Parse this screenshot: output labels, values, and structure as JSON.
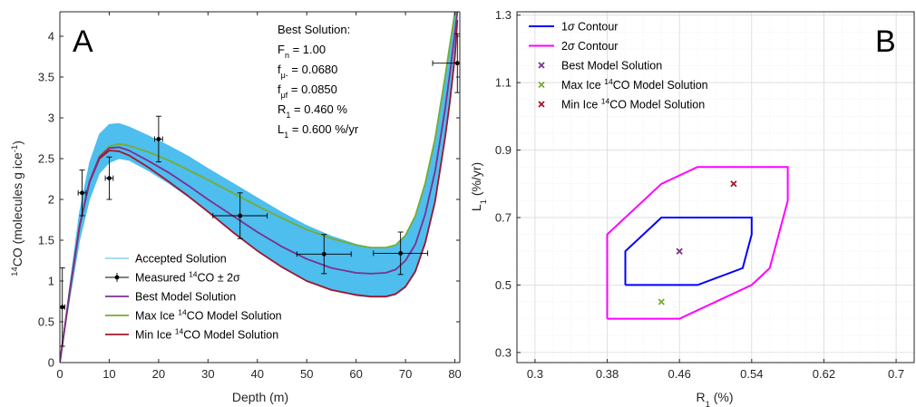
{
  "chart_data": [
    {
      "panel": "A",
      "type": "line",
      "xlabel": "Depth (m)",
      "ylabel_parts": {
        "sup": "14",
        "main": "CO (molecules g ice",
        "sup2": "-1",
        "end": ")"
      },
      "xlim": [
        0,
        81
      ],
      "ylim": [
        0,
        4.3
      ],
      "xticks": [
        0,
        10,
        20,
        30,
        40,
        50,
        60,
        70,
        80
      ],
      "yticks": [
        0,
        0.5,
        1,
        1.5,
        2,
        2.5,
        3,
        3.5,
        4
      ],
      "ytick_labels": [
        "0",
        "0.5",
        "1",
        "1.5",
        "2",
        "2.5",
        "3",
        "3.5",
        "4"
      ],
      "grid": false,
      "legend_position": "bottom-left",
      "legend": [
        {
          "key": "accepted",
          "label": "Accepted Solution",
          "color": "#4dbeee"
        },
        {
          "key": "measured",
          "label_parts": [
            "Measured ",
            "14",
            "CO ± 2σ"
          ],
          "color": "#000000"
        },
        {
          "key": "best",
          "label": "Best Model Solution",
          "color": "#7e2f8e"
        },
        {
          "key": "max",
          "label_parts": [
            "Max Ice ",
            "14",
            "CO Model Solution"
          ],
          "color": "#77ac30"
        },
        {
          "key": "min",
          "label_parts": [
            "Min Ice ",
            "14",
            "CO Model Solution"
          ],
          "color": "#a2142f"
        }
      ],
      "annotation": {
        "title": "Best Solution:",
        "lines": [
          {
            "sym": "F",
            "sub": "n",
            "text": " = 1.00"
          },
          {
            "sym": "f",
            "sub": "μ-",
            "text": " = 0.0680"
          },
          {
            "sym": "f",
            "sub": "μf",
            "text": " = 0.0850"
          },
          {
            "sym": "R",
            "sub": "1",
            "text": " = 0.460 %"
          },
          {
            "sym": "L",
            "sub": "1",
            "text": " = 0.600 %/yr"
          }
        ]
      },
      "measurements": [
        {
          "x": 0.5,
          "y": 0.68,
          "xerr": 0.5,
          "yerr": 0.48
        },
        {
          "x": 4.5,
          "y": 2.08,
          "xerr": 0.8,
          "yerr": 0.28
        },
        {
          "x": 10,
          "y": 2.26,
          "xerr": 0.8,
          "yerr": 0.26
        },
        {
          "x": 20,
          "y": 2.74,
          "xerr": 0.8,
          "yerr": 0.28
        },
        {
          "x": 36.5,
          "y": 1.8,
          "xerr": 5.5,
          "yerr": 0.28
        },
        {
          "x": 53.5,
          "y": 1.33,
          "xerr": 5.5,
          "yerr": 0.24
        },
        {
          "x": 69,
          "y": 1.34,
          "xerr": 5.5,
          "yerr": 0.26
        },
        {
          "x": 80.5,
          "y": 3.67,
          "xerr": 5,
          "yerr": 0.36
        }
      ],
      "accepted_band": {
        "x": [
          0,
          2,
          4,
          6,
          8,
          10,
          12,
          14,
          18,
          22,
          26,
          30,
          35,
          40,
          45,
          50,
          55,
          60,
          63,
          66,
          68,
          70,
          72,
          74,
          76,
          78,
          79,
          80,
          80.5
        ],
        "lower": [
          0,
          0.78,
          1.5,
          2.0,
          2.32,
          2.45,
          2.5,
          2.48,
          2.35,
          2.2,
          2.03,
          1.85,
          1.6,
          1.37,
          1.17,
          1.0,
          0.89,
          0.82,
          0.8,
          0.8,
          0.83,
          0.92,
          1.1,
          1.45,
          1.95,
          2.75,
          3.2,
          3.8,
          4.25
        ],
        "upper": [
          0,
          0.95,
          1.85,
          2.45,
          2.8,
          2.92,
          2.93,
          2.89,
          2.78,
          2.66,
          2.53,
          2.38,
          2.2,
          2.02,
          1.84,
          1.68,
          1.55,
          1.45,
          1.41,
          1.4,
          1.43,
          1.55,
          1.8,
          2.2,
          2.75,
          3.5,
          3.9,
          4.3,
          4.3
        ]
      },
      "series": [
        {
          "key": "best",
          "x": [
            0,
            2,
            4,
            6,
            8,
            10,
            12,
            14,
            18,
            22,
            26,
            30,
            35,
            40,
            45,
            50,
            55,
            60,
            63,
            66,
            68,
            70,
            72,
            74,
            76,
            78,
            79,
            80,
            80.5
          ],
          "y": [
            0,
            0.87,
            1.67,
            2.22,
            2.52,
            2.63,
            2.64,
            2.6,
            2.47,
            2.33,
            2.17,
            2.0,
            1.8,
            1.6,
            1.42,
            1.27,
            1.16,
            1.1,
            1.09,
            1.1,
            1.14,
            1.25,
            1.45,
            1.82,
            2.35,
            3.1,
            3.55,
            4.05,
            4.3
          ]
        },
        {
          "key": "max",
          "x": [
            0,
            2,
            4,
            6,
            8,
            10,
            12,
            14,
            18,
            22,
            26,
            30,
            35,
            40,
            45,
            50,
            55,
            60,
            63,
            66,
            68,
            70,
            72,
            74,
            76,
            78,
            79,
            80,
            80.5
          ],
          "y": [
            0,
            0.85,
            1.66,
            2.22,
            2.53,
            2.65,
            2.68,
            2.66,
            2.58,
            2.48,
            2.36,
            2.24,
            2.08,
            1.92,
            1.77,
            1.63,
            1.52,
            1.44,
            1.41,
            1.41,
            1.44,
            1.56,
            1.8,
            2.2,
            2.75,
            3.5,
            3.9,
            4.3,
            4.3
          ]
        },
        {
          "key": "min",
          "x": [
            0,
            2,
            4,
            6,
            8,
            10,
            12,
            14,
            18,
            22,
            26,
            30,
            35,
            40,
            45,
            50,
            55,
            60,
            63,
            66,
            68,
            70,
            72,
            74,
            76,
            78,
            79,
            80,
            80.5
          ],
          "y": [
            0,
            0.88,
            1.68,
            2.21,
            2.5,
            2.6,
            2.59,
            2.54,
            2.39,
            2.22,
            2.04,
            1.85,
            1.6,
            1.37,
            1.17,
            1.0,
            0.89,
            0.83,
            0.81,
            0.81,
            0.84,
            0.93,
            1.12,
            1.47,
            1.98,
            2.75,
            3.2,
            3.75,
            4.2
          ]
        }
      ]
    },
    {
      "panel": "B",
      "type": "scatter",
      "xlabel_parts": {
        "main": "R",
        "sub": "1",
        "end": " (%)"
      },
      "ylabel_parts": {
        "main": "L",
        "sub": "1",
        "end": " (%/yr)"
      },
      "xlim": [
        0.28,
        0.72
      ],
      "ylim": [
        0.27,
        1.31
      ],
      "xticks": [
        0.3,
        0.38,
        0.46,
        0.54,
        0.62,
        0.7
      ],
      "xtick_labels": [
        "0.3",
        "0.38",
        "0.46",
        "0.54",
        "0.62",
        "0.7"
      ],
      "yticks": [
        0.3,
        0.5,
        0.7,
        0.9,
        1.1,
        1.3
      ],
      "ytick_labels": [
        "0.3",
        "0.5",
        "0.7",
        "0.9",
        "1.1",
        "1.3"
      ],
      "grid": true,
      "legend_position": "top-left",
      "legend": [
        {
          "key": "c1",
          "label_parts": [
            "1",
            "σ",
            " Contour"
          ],
          "color": "#0000ff"
        },
        {
          "key": "c2",
          "label_parts": [
            "2",
            "σ",
            " Contour"
          ],
          "color": "#ff00ff"
        },
        {
          "key": "bestpt",
          "label": "Best Model Solution",
          "color": "#7e2f8e"
        },
        {
          "key": "maxpt",
          "label_parts": [
            "Max Ice ",
            "14",
            "CO Model Solution"
          ],
          "color": "#77ac30"
        },
        {
          "key": "minpt",
          "label_parts": [
            "Min Ice ",
            "14",
            "CO Model Solution"
          ],
          "color": "#a2142f"
        }
      ],
      "contours": [
        {
          "key": "c1",
          "points": [
            [
              0.4,
              0.5
            ],
            [
              0.48,
              0.5
            ],
            [
              0.53,
              0.55
            ],
            [
              0.54,
              0.65
            ],
            [
              0.54,
              0.7
            ],
            [
              0.44,
              0.7
            ],
            [
              0.4,
              0.6
            ],
            [
              0.4,
              0.5
            ]
          ]
        },
        {
          "key": "c2",
          "points": [
            [
              0.38,
              0.4
            ],
            [
              0.46,
              0.4
            ],
            [
              0.54,
              0.5
            ],
            [
              0.56,
              0.55
            ],
            [
              0.58,
              0.75
            ],
            [
              0.58,
              0.85
            ],
            [
              0.48,
              0.85
            ],
            [
              0.44,
              0.8
            ],
            [
              0.38,
              0.65
            ],
            [
              0.38,
              0.4
            ]
          ]
        }
      ],
      "points": [
        {
          "key": "bestpt",
          "x": 0.46,
          "y": 0.6
        },
        {
          "key": "maxpt",
          "x": 0.44,
          "y": 0.45
        },
        {
          "key": "minpt",
          "x": 0.52,
          "y": 0.8
        }
      ]
    }
  ]
}
